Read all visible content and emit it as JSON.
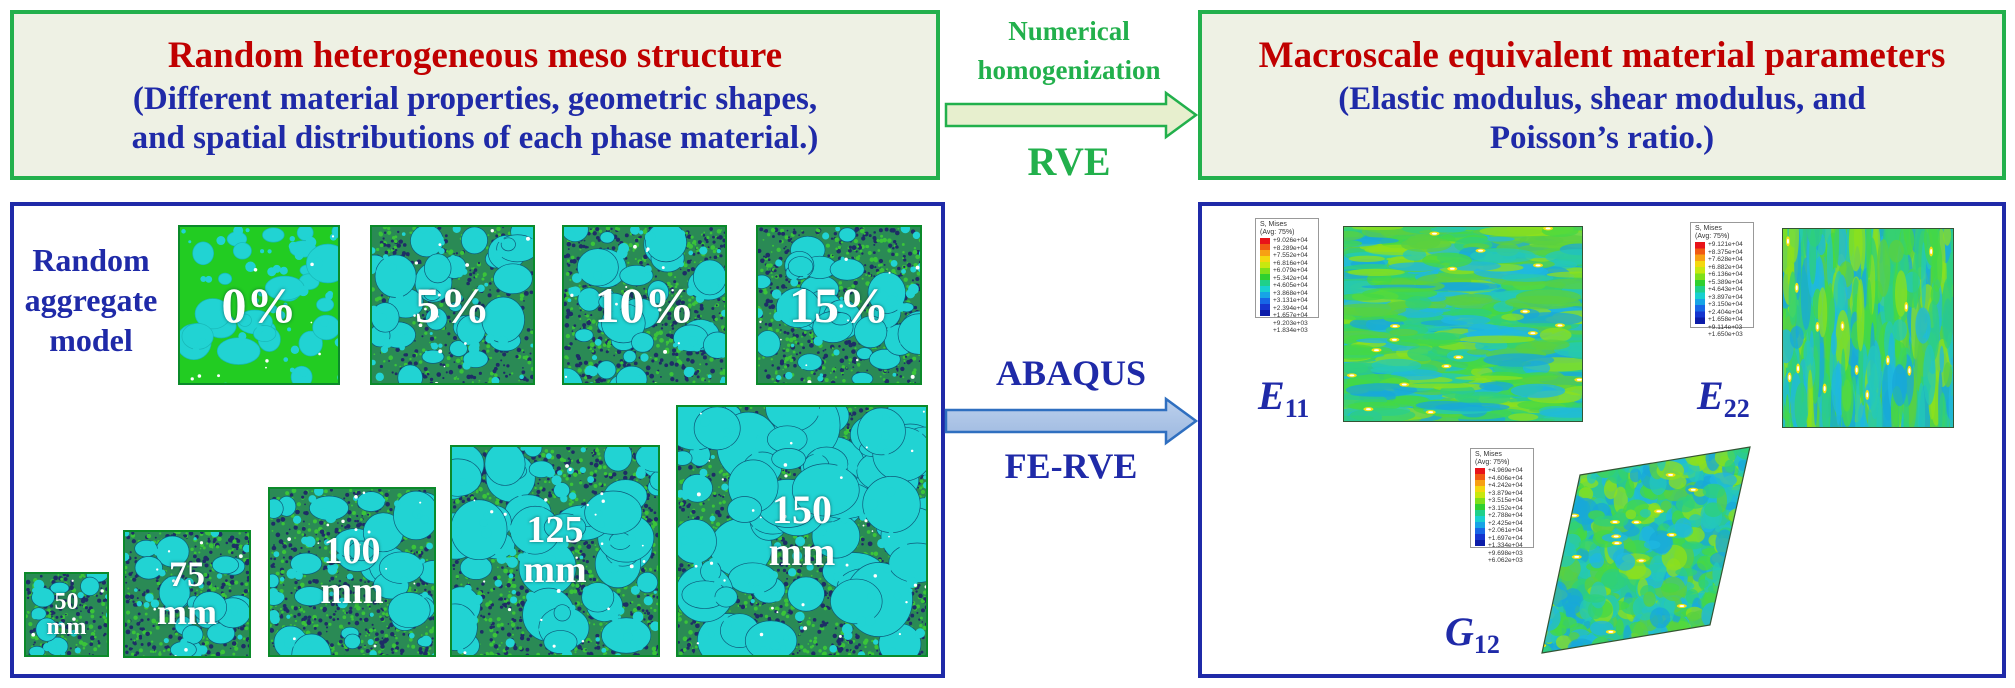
{
  "meso_box": {
    "title": "Random heterogeneous meso structure",
    "desc_line1": "(Different material properties, geometric shapes,",
    "desc_line2": "and spatial distributions of each phase material.)"
  },
  "macro_box": {
    "title": "Macroscale equivalent material parameters",
    "desc_line1": "(Elastic modulus, shear modulus, and",
    "desc_line2": "Poisson’s ratio.)"
  },
  "top_arrow": {
    "label_line1": "Numerical",
    "label_line2": "homogenization",
    "below_label": "RVE",
    "color": "#22b04c"
  },
  "mid_arrow": {
    "above_label": "ABAQUS",
    "below_label": "FE-RVE",
    "color": "#1f2aa8"
  },
  "left_panel": {
    "model_label_line1": "Random",
    "model_label_line2": "aggregate",
    "model_label_line3": "model",
    "percent_models": [
      {
        "label": "0%"
      },
      {
        "label": "5%"
      },
      {
        "label": "10%"
      },
      {
        "label": "15%"
      }
    ],
    "size_models": [
      {
        "line1": "50",
        "line2": "mm"
      },
      {
        "line1": "75",
        "line2": "mm"
      },
      {
        "line1": "100",
        "line2": "mm"
      },
      {
        "line1": "125",
        "line2": "mm"
      },
      {
        "line1": "150",
        "line2": "mm"
      }
    ]
  },
  "right_panel": {
    "legend_header_line1": "S, Mises",
    "legend_header_line2": "(Avg: 75%)",
    "legend_E11": [
      "+9.026e+04",
      "+8.289e+04",
      "+7.552e+04",
      "+6.816e+04",
      "+6.079e+04",
      "+5.342e+04",
      "+4.605e+04",
      "+3.868e+04",
      "+3.131e+04",
      "+2.394e+04",
      "+1.657e+04",
      "+9.203e+03",
      "+1.834e+03"
    ],
    "legend_E22": [
      "+9.121e+04",
      "+8.375e+04",
      "+7.628e+04",
      "+6.882e+04",
      "+6.136e+04",
      "+5.389e+04",
      "+4.643e+04",
      "+3.897e+04",
      "+3.150e+04",
      "+2.404e+04",
      "+1.658e+04",
      "+9.114e+03",
      "+1.650e+03"
    ],
    "legend_G12": [
      "+4.969e+04",
      "+4.606e+04",
      "+4.242e+04",
      "+3.879e+04",
      "+3.515e+04",
      "+3.152e+04",
      "+2.788e+04",
      "+2.425e+04",
      "+2.061e+04",
      "+1.697e+04",
      "+1.334e+04",
      "+9.698e+03",
      "+6.062e+03"
    ],
    "E11_main": "E",
    "E11_sub": "11",
    "E22_main": "E",
    "E22_sub": "22",
    "G12_main": "G",
    "G12_sub": "12"
  },
  "colors": {
    "aggregate": "#21d3d3",
    "matrix": "#22cc22",
    "pore": "#1e2d66",
    "green_frame": "#22b04c",
    "blue_frame": "#1f2aa8",
    "title_red": "#c00000"
  }
}
